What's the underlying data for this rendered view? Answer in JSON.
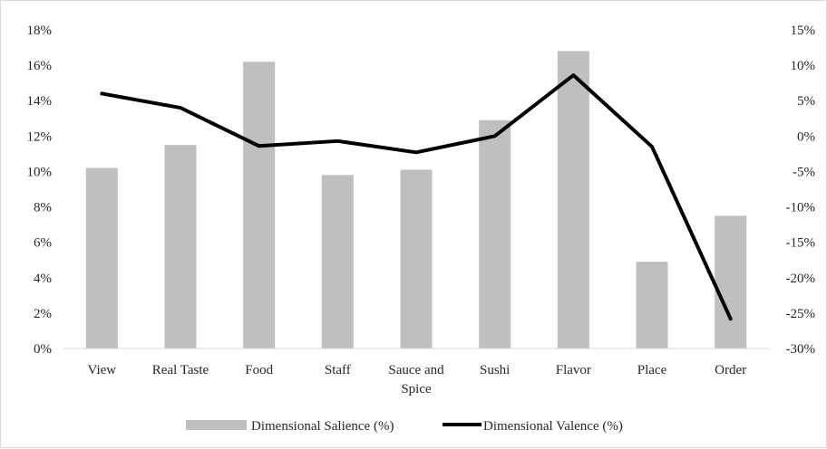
{
  "chart_data": {
    "type": "bar",
    "categories": [
      "View",
      "Real Taste",
      "Food",
      "Staff",
      "Sauce and Spice",
      "Sushi",
      "Flavor",
      "Place",
      "Order"
    ],
    "series": [
      {
        "name": "Dimensional Salience (%)",
        "type": "bar",
        "axis": "left",
        "color": "#bfbfbf",
        "values": [
          10.2,
          11.5,
          16.2,
          9.8,
          10.1,
          12.9,
          16.8,
          4.9,
          7.5
        ]
      },
      {
        "name": "Dimensional Valence (%)",
        "type": "line",
        "axis": "right",
        "color": "#000000",
        "values": [
          6.0,
          4.0,
          -1.4,
          -0.7,
          -2.3,
          0.0,
          8.6,
          -1.5,
          -25.8
        ]
      }
    ],
    "y_left": {
      "ylim": [
        0,
        18
      ],
      "ticks": [
        0,
        2,
        4,
        6,
        8,
        10,
        12,
        14,
        16,
        18
      ],
      "tick_labels": [
        "0%",
        "2%",
        "4%",
        "6%",
        "8%",
        "10%",
        "12%",
        "14%",
        "16%",
        "18%"
      ]
    },
    "y_right": {
      "ylim": [
        -30,
        15
      ],
      "ticks": [
        -30,
        -25,
        -20,
        -15,
        -10,
        -5,
        0,
        5,
        10,
        15
      ],
      "tick_labels": [
        "-30%",
        "-25%",
        "-20%",
        "-15%",
        "-10%",
        "-5%",
        "0%",
        "5%",
        "10%",
        "15%"
      ]
    },
    "xlabel": "",
    "ylabel": "",
    "title": "",
    "grid": false,
    "legend": "bottom"
  }
}
